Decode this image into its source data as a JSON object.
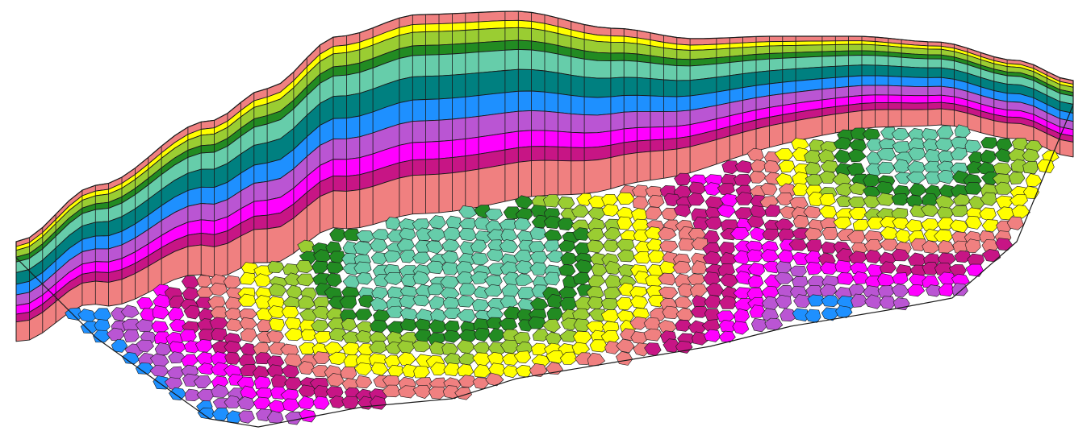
{
  "scene": {
    "description_kind": "geological-voronoi-mesh",
    "background": "#ffffff",
    "layers": [
      {
        "name": "layer-1",
        "color": "#f08080"
      },
      {
        "name": "layer-2",
        "color": "#ffff00"
      },
      {
        "name": "layer-3",
        "color": "#9acd32"
      },
      {
        "name": "layer-4",
        "color": "#228b22"
      },
      {
        "name": "layer-5",
        "color": "#66cdaa"
      },
      {
        "name": "layer-6",
        "color": "#008080"
      },
      {
        "name": "layer-7",
        "color": "#1e90ff"
      },
      {
        "name": "layer-8",
        "color": "#ba55d3"
      },
      {
        "name": "layer-9",
        "color": "#ff00ff"
      },
      {
        "name": "layer-10",
        "color": "#c71585"
      },
      {
        "name": "layer-11",
        "color": "#f08080"
      }
    ],
    "outline_color": "#1a1a1a"
  }
}
